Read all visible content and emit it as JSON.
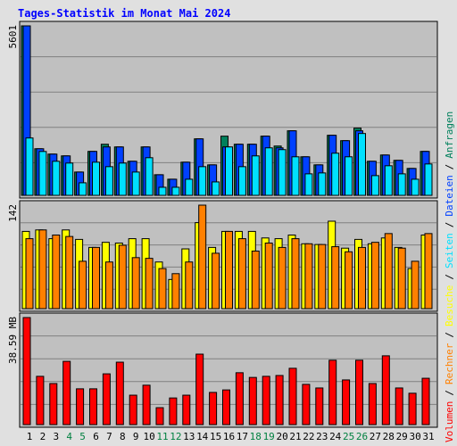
{
  "chart_data": [
    {
      "type": "bar",
      "title": "Tages-Statistik im Monat Mai 2024",
      "ylim": [
        0,
        5601
      ],
      "yticks": [
        5601
      ],
      "series": [
        {
          "name": "Anfragen",
          "color": "#00805c",
          "values": [
            5601,
            1540,
            1363,
            1304,
            770,
            1452,
            1689,
            1600,
            1126,
            1600,
            681,
            533,
            1096,
            1867,
            1007,
            1956,
            1689,
            1689,
            1956,
            1630,
            2133,
            1274,
            1007,
            1985,
            1807,
            2222,
            1126,
            1333,
            1156,
            889,
            1452
          ]
        },
        {
          "name": "Dateien",
          "color": "#0040ff",
          "values": [
            5601,
            1540,
            1363,
            1304,
            770,
            1452,
            1600,
            1600,
            1126,
            1600,
            681,
            533,
            1096,
            1867,
            1007,
            1600,
            1689,
            1689,
            1956,
            1570,
            2133,
            1274,
            1007,
            1985,
            1807,
            2133,
            1126,
            1333,
            1156,
            889,
            1452
          ]
        },
        {
          "name": "Seiten",
          "color": "#00e0ff",
          "values": [
            1896,
            1450,
            1126,
            1067,
            415,
            1096,
            948,
            1067,
            770,
            1244,
            267,
            267,
            533,
            948,
            444,
            1600,
            948,
            1304,
            1570,
            1511,
            1274,
            711,
            741,
            1393,
            1274,
            2044,
            652,
            978,
            711,
            533,
            1037
          ]
        }
      ]
    },
    {
      "type": "bar",
      "ylim": [
        0,
        142
      ],
      "yticks": [
        142
      ],
      "series": [
        {
          "name": "Besuche",
          "color": "#ffff00",
          "values": [
            106,
            108,
            96,
            108,
            95,
            84,
            91,
            90,
            96,
            96,
            64,
            40,
            82,
            118,
            84,
            106,
            106,
            106,
            97,
            96,
            101,
            89,
            88,
            120,
            83,
            95,
            89,
            97,
            84,
            55,
            101
          ]
        },
        {
          "name": "Rechner",
          "color": "#ff8000",
          "values": [
            96,
            108,
            101,
            99,
            65,
            84,
            64,
            87,
            70,
            69,
            55,
            48,
            64,
            142,
            76,
            106,
            96,
            79,
            90,
            84,
            96,
            89,
            88,
            85,
            78,
            84,
            91,
            103,
            83,
            65,
            103
          ]
        }
      ]
    },
    {
      "type": "bar",
      "ylim": [
        0,
        38.59
      ],
      "yticks": [
        {
          "value": 38.59,
          "label": "38.59 MB"
        }
      ],
      "series": [
        {
          "name": "Volumen",
          "color": "#ff0000",
          "values": [
            38.59,
            17.4,
            14.8,
            22.8,
            12.9,
            12.9,
            18.3,
            22.5,
            10.6,
            14.2,
            6.1,
            9.6,
            10.6,
            25.4,
            11.6,
            12.5,
            18.7,
            17.0,
            17.4,
            17.7,
            20.3,
            14.5,
            13.2,
            23.2,
            16.1,
            23.2,
            14.8,
            24.8,
            13.2,
            11.3,
            16.7
          ]
        }
      ],
      "categories": [
        "1",
        "2",
        "3",
        "4",
        "5",
        "6",
        "7",
        "8",
        "9",
        "10",
        "11",
        "12",
        "13",
        "14",
        "15",
        "16",
        "17",
        "18",
        "19",
        "20",
        "21",
        "22",
        "23",
        "24",
        "25",
        "26",
        "27",
        "28",
        "29",
        "30",
        "31"
      ],
      "category_colors": [
        "#000000",
        "#000000",
        "#000000",
        "#008040",
        "#008040",
        "#000000",
        "#000000",
        "#000000",
        "#000000",
        "#000000",
        "#008040",
        "#008040",
        "#000000",
        "#000000",
        "#000000",
        "#000000",
        "#000000",
        "#008040",
        "#008040",
        "#000000",
        "#000000",
        "#000000",
        "#000000",
        "#000000",
        "#008040",
        "#008040",
        "#000000",
        "#000000",
        "#000000",
        "#000000",
        "#000000"
      ],
      "legend_separator": "/"
    }
  ]
}
